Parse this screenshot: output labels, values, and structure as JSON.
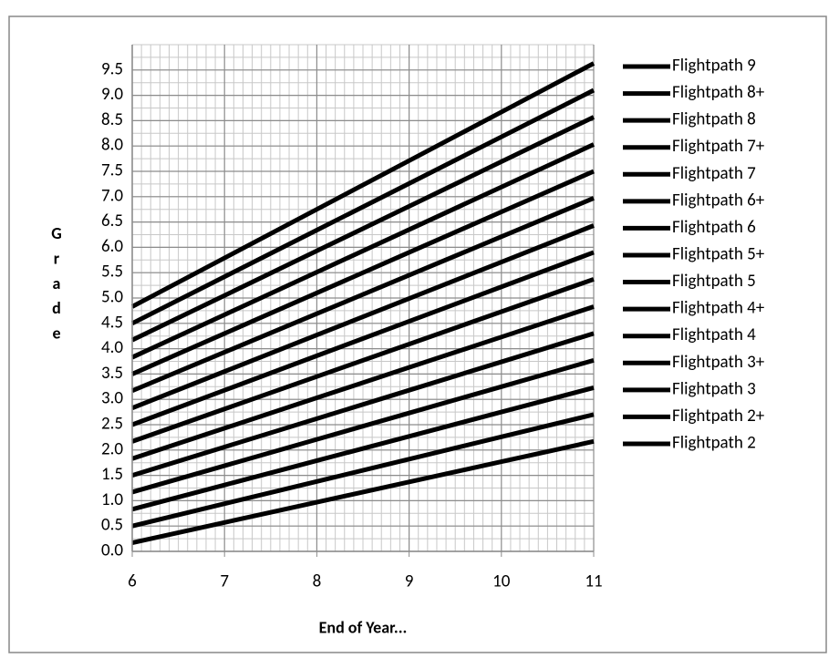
{
  "chart_data": {
    "type": "line",
    "x_label": "End of Year...",
    "y_label": "Grade",
    "x": [
      6,
      7,
      8,
      9,
      10,
      11
    ],
    "xlim": [
      6,
      11
    ],
    "xticks": [
      6,
      7,
      8,
      9,
      10,
      11
    ],
    "ylim": [
      0,
      10
    ],
    "yticks": [
      {
        "value": 0,
        "label": "0.0"
      },
      0.5,
      {
        "value": 1,
        "label": "1.0"
      },
      1.5,
      {
        "value": 2,
        "label": "2.0"
      },
      2.5,
      {
        "value": 3,
        "label": "3.0"
      },
      3.5,
      {
        "value": 4,
        "label": "4.0"
      },
      4.5,
      {
        "value": 5,
        "label": "5.0"
      },
      5.5,
      {
        "value": 6,
        "label": "6.0"
      },
      6.5,
      {
        "value": 7,
        "label": "7.0"
      },
      7.5,
      {
        "value": 8,
        "label": "8.0"
      },
      8.5,
      {
        "value": 9,
        "label": "9.0"
      },
      9.5
    ],
    "grid": true,
    "legend": "right",
    "series": [
      {
        "name": "Flightpath 9",
        "color": "#000000",
        "values": [
          4.83,
          5.79,
          6.75,
          7.71,
          8.67,
          9.63
        ]
      },
      {
        "name": "Flightpath 8+",
        "color": "#000000",
        "values": [
          4.5,
          5.42,
          6.34,
          7.26,
          8.18,
          9.1
        ]
      },
      {
        "name": "Flightpath 8",
        "color": "#000000",
        "values": [
          4.17,
          5.05,
          5.93,
          6.81,
          7.69,
          8.57
        ]
      },
      {
        "name": "Flightpath 7+",
        "color": "#000000",
        "values": [
          3.83,
          4.67,
          5.51,
          6.35,
          7.19,
          8.03
        ]
      },
      {
        "name": "Flightpath 7",
        "color": "#000000",
        "values": [
          3.5,
          4.3,
          5.1,
          5.9,
          6.7,
          7.5
        ]
      },
      {
        "name": "Flightpath 6+",
        "color": "#000000",
        "values": [
          3.17,
          3.93,
          4.69,
          5.45,
          6.21,
          6.97
        ]
      },
      {
        "name": "Flightpath 6",
        "color": "#000000",
        "values": [
          2.83,
          3.55,
          4.27,
          4.99,
          5.71,
          6.43
        ]
      },
      {
        "name": "Flightpath 5+",
        "color": "#000000",
        "values": [
          2.5,
          3.18,
          3.86,
          4.54,
          5.22,
          5.9
        ]
      },
      {
        "name": "Flightpath 5",
        "color": "#000000",
        "values": [
          2.17,
          2.81,
          3.45,
          4.09,
          4.73,
          5.37
        ]
      },
      {
        "name": "Flightpath 4+",
        "color": "#000000",
        "values": [
          1.83,
          2.43,
          3.03,
          3.63,
          4.23,
          4.83
        ]
      },
      {
        "name": "Flightpath 4",
        "color": "#000000",
        "values": [
          1.5,
          2.06,
          2.62,
          3.18,
          3.74,
          4.3
        ]
      },
      {
        "name": "Flightpath 3+",
        "color": "#000000",
        "values": [
          1.17,
          1.69,
          2.21,
          2.73,
          3.25,
          3.77
        ]
      },
      {
        "name": "Flightpath 3",
        "color": "#000000",
        "values": [
          0.83,
          1.31,
          1.79,
          2.27,
          2.75,
          3.23
        ]
      },
      {
        "name": "Flightpath 2+",
        "color": "#000000",
        "values": [
          0.5,
          0.94,
          1.38,
          1.82,
          2.26,
          2.7
        ]
      },
      {
        "name": "Flightpath 2",
        "color": "#000000",
        "values": [
          0.17,
          0.57,
          0.97,
          1.37,
          1.77,
          2.17
        ]
      }
    ]
  }
}
